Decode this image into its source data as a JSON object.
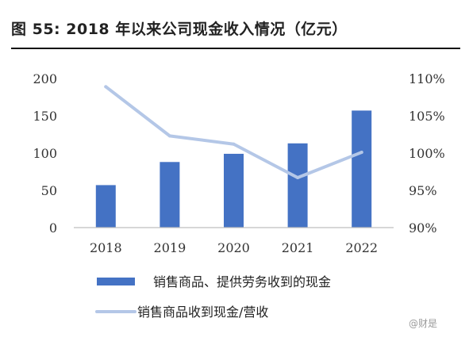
{
  "figure_title": "图  55:  2018 年以来公司现金收入情况（亿元）",
  "watermark": "@财是",
  "colors": {
    "bar": "#4472C4",
    "line": "#B4C7E7",
    "axis": "#bfbfbf"
  },
  "chart_data": {
    "type": "bar",
    "categories": [
      "2018",
      "2019",
      "2020",
      "2021",
      "2022"
    ],
    "series": [
      {
        "name": "销售商品、提供劳务收到的现金",
        "type": "bar",
        "axis": "left",
        "values": [
          57,
          88,
          99,
          113,
          157
        ]
      },
      {
        "name": "销售商品收到现金/营收",
        "type": "line",
        "axis": "right",
        "values": [
          108.9,
          102.3,
          101.2,
          96.7,
          100.1
        ]
      }
    ],
    "y_left": {
      "min": 0,
      "max": 200,
      "ticks": [
        0,
        50,
        100,
        150,
        200
      ],
      "tick_labels": [
        "0",
        "50",
        "100",
        "150",
        "200"
      ]
    },
    "y_right": {
      "min": 90,
      "max": 110,
      "ticks": [
        90,
        95,
        100,
        105,
        110
      ],
      "tick_labels": [
        "90%",
        "95%",
        "100%",
        "105%",
        "110%"
      ]
    },
    "grid": false,
    "legend_position": "bottom"
  }
}
